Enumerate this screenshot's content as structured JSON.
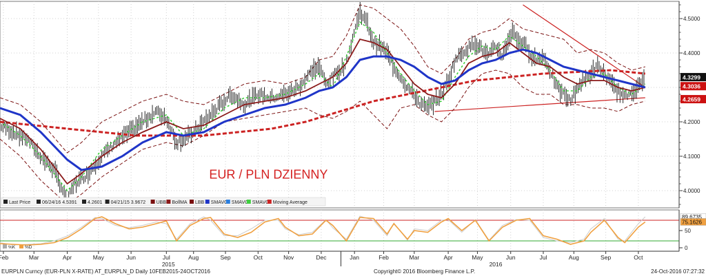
{
  "chart_data": [
    {
      "type": "line",
      "title": "EUR / PLN DZIENNY",
      "ylim": [
        3.95,
        4.55
      ],
      "yticks": [
        4.0,
        4.1,
        4.2,
        4.3,
        4.4,
        4.5
      ],
      "ytick_labels": [
        "4.0000",
        "4.1000",
        "4.2000",
        "4.3000",
        "4.4000",
        "4.5000"
      ],
      "xlim": [
        0,
        100
      ],
      "x_months": [
        "Feb",
        "Mar",
        "Apr",
        "May",
        "Jun",
        "Jul",
        "Aug",
        "Sep",
        "Oct",
        "Nov",
        "Dec",
        "Jan",
        "Feb",
        "Mar",
        "Apr",
        "May",
        "Jun",
        "Jul",
        "Aug",
        "Sep",
        "Oct"
      ],
      "x_month_pos": [
        0.5,
        5,
        9.9,
        14.5,
        19.3,
        24.5,
        28.5,
        33.2,
        38,
        42.5,
        47.3,
        52.2,
        56.5,
        61,
        66,
        70.3,
        75.2,
        80,
        84.5,
        89.2,
        94
      ],
      "x_years": [
        "2015",
        "2016"
      ],
      "x_year_pos": [
        24.8,
        73
      ],
      "legend": [
        {
          "label": "Last Price",
          "color": "#222222"
        },
        {
          "label": "06/24/16 4.5391",
          "color": "#222222"
        },
        {
          "label": "4.2601",
          "color": "#222222"
        },
        {
          "label": "04/21/15 3.9672",
          "color": "#222222"
        },
        {
          "label": "UBB",
          "color": "#7a1010"
        },
        {
          "label": "BollMA",
          "color": "#8b1a1a"
        },
        {
          "label": "LBB",
          "color": "#7a1010"
        },
        {
          "label": "SMAVG",
          "color": "#1f35c8"
        },
        {
          "label": "SMAVG",
          "color": "#2b7fe0"
        },
        {
          "label": "SMAVG",
          "color": "#3ecf3e"
        },
        {
          "label": "Moving Average",
          "color": "#cc2222"
        }
      ],
      "price_labels": [
        {
          "text": "4.3299",
          "value": 4.3299,
          "bg": "#111111",
          "color": "#ffffff"
        },
        {
          "text": "4.3036",
          "value": 4.3036,
          "bg": "#cc1111",
          "color": "#ffffff"
        },
        {
          "text": "4.2659",
          "value": 4.2659,
          "bg": "#cc1111",
          "color": "#ffffff"
        }
      ],
      "series": [
        {
          "name": "Last Price",
          "color": "#111111",
          "x": [
            0,
            2,
            4,
            6,
            8,
            9.9,
            11,
            13,
            15,
            17,
            19,
            21,
            23,
            24.5,
            26,
            28,
            30,
            32,
            34,
            36,
            38,
            40,
            42,
            44,
            46,
            47,
            48,
            50,
            51,
            52,
            53,
            54,
            55,
            56,
            57,
            58,
            59,
            60,
            61,
            62,
            63,
            64,
            65,
            66,
            67,
            68,
            70,
            72,
            73,
            74,
            75.5,
            76,
            77,
            78,
            79,
            80,
            81,
            82,
            83,
            84,
            85,
            86,
            87,
            88,
            89,
            90,
            91,
            92,
            93,
            94,
            95
          ],
          "values": [
            4.19,
            4.17,
            4.15,
            4.1,
            4.06,
            3.97,
            4.02,
            4.05,
            4.1,
            4.14,
            4.17,
            4.2,
            4.23,
            4.21,
            4.14,
            4.16,
            4.2,
            4.24,
            4.28,
            4.25,
            4.28,
            4.27,
            4.28,
            4.3,
            4.35,
            4.36,
            4.31,
            4.35,
            4.37,
            4.45,
            4.52,
            4.49,
            4.43,
            4.42,
            4.4,
            4.36,
            4.33,
            4.3,
            4.28,
            4.25,
            4.24,
            4.26,
            4.28,
            4.32,
            4.38,
            4.4,
            4.43,
            4.39,
            4.42,
            4.39,
            4.47,
            4.44,
            4.43,
            4.4,
            4.38,
            4.39,
            4.35,
            4.3,
            4.28,
            4.26,
            4.3,
            4.32,
            4.34,
            4.36,
            4.34,
            4.31,
            4.29,
            4.27,
            4.29,
            4.3,
            4.33
          ]
        },
        {
          "name": "UBB",
          "color": "#7a1010",
          "x": [
            0,
            3,
            6,
            9.9,
            12,
            15,
            18,
            21,
            24.5,
            27,
            30,
            33,
            36,
            39,
            42,
            45,
            47,
            49,
            51,
            53,
            55,
            57,
            59,
            61,
            63,
            65,
            67,
            69,
            71,
            73,
            75,
            77,
            79,
            81,
            83,
            85,
            87,
            89,
            91,
            93,
            95
          ],
          "values": [
            4.27,
            4.25,
            4.2,
            4.11,
            4.14,
            4.2,
            4.23,
            4.26,
            4.28,
            4.26,
            4.25,
            4.28,
            4.31,
            4.32,
            4.31,
            4.33,
            4.38,
            4.39,
            4.45,
            4.54,
            4.53,
            4.5,
            4.47,
            4.42,
            4.36,
            4.34,
            4.38,
            4.44,
            4.46,
            4.47,
            4.5,
            4.47,
            4.46,
            4.45,
            4.44,
            4.4,
            4.41,
            4.4,
            4.37,
            4.35,
            4.36
          ]
        },
        {
          "name": "LBB",
          "color": "#7a1010",
          "x": [
            0,
            3,
            6,
            9.9,
            12,
            15,
            18,
            21,
            24.5,
            27,
            30,
            33,
            36,
            39,
            42,
            45,
            47,
            49,
            51,
            53,
            55,
            57,
            59,
            61,
            63,
            65,
            67,
            69,
            71,
            73,
            75,
            77,
            79,
            81,
            83,
            85,
            87,
            89,
            91,
            93,
            95
          ],
          "values": [
            4.15,
            4.1,
            4.03,
            3.96,
            3.99,
            4.04,
            4.08,
            4.12,
            4.14,
            4.13,
            4.16,
            4.2,
            4.21,
            4.22,
            4.23,
            4.24,
            4.22,
            4.21,
            4.23,
            4.26,
            4.22,
            4.18,
            4.24,
            4.25,
            4.22,
            4.2,
            4.24,
            4.3,
            4.34,
            4.35,
            4.34,
            4.3,
            4.28,
            4.28,
            4.25,
            4.25,
            4.24,
            4.24,
            4.23,
            4.25,
            4.26
          ]
        },
        {
          "name": "BollMA",
          "color": "#8b1a1a",
          "x": [
            0,
            3,
            6,
            9.9,
            12,
            15,
            18,
            21,
            24.5,
            27,
            30,
            33,
            36,
            39,
            42,
            45,
            47,
            49,
            51,
            53,
            55,
            57,
            59,
            61,
            63,
            65,
            67,
            69,
            71,
            73,
            75,
            77,
            79,
            81,
            83,
            85,
            87,
            89,
            91,
            93,
            95
          ],
          "values": [
            4.21,
            4.18,
            4.12,
            4.02,
            4.05,
            4.1,
            4.14,
            4.17,
            4.2,
            4.18,
            4.19,
            4.22,
            4.25,
            4.26,
            4.27,
            4.29,
            4.31,
            4.33,
            4.37,
            4.44,
            4.43,
            4.41,
            4.36,
            4.31,
            4.28,
            4.27,
            4.31,
            4.37,
            4.39,
            4.4,
            4.43,
            4.4,
            4.37,
            4.36,
            4.33,
            4.31,
            4.32,
            4.32,
            4.3,
            4.29,
            4.3
          ]
        },
        {
          "name": "SMAVG (green)",
          "color": "#3ecf3e",
          "x": [
            0,
            3,
            6,
            9.9,
            12,
            15,
            18,
            21,
            24.5,
            27,
            30,
            33,
            36,
            39,
            42,
            45,
            47,
            49,
            51,
            53,
            55,
            57,
            59,
            61,
            63,
            65,
            67,
            69,
            71,
            73,
            75,
            77,
            79,
            81,
            83,
            85,
            87,
            89,
            91,
            93,
            95
          ],
          "values": [
            4.2,
            4.16,
            4.1,
            4.0,
            4.04,
            4.12,
            4.16,
            4.2,
            4.22,
            4.16,
            4.18,
            4.24,
            4.27,
            4.27,
            4.28,
            4.31,
            4.34,
            4.3,
            4.39,
            4.49,
            4.46,
            4.4,
            4.34,
            4.29,
            4.25,
            4.26,
            4.33,
            4.39,
            4.42,
            4.41,
            4.45,
            4.42,
            4.39,
            4.35,
            4.29,
            4.29,
            4.33,
            4.34,
            4.3,
            4.28,
            4.31
          ]
        },
        {
          "name": "SMAVG (blue)",
          "color": "#1f35c8",
          "x": [
            0,
            3,
            6,
            9.9,
            12,
            15,
            18,
            21,
            24.5,
            27,
            30,
            33,
            36,
            39,
            42,
            45,
            47,
            49,
            51,
            53,
            55,
            57,
            59,
            61,
            63,
            65,
            67,
            69,
            71,
            73,
            75,
            77,
            79,
            81,
            83,
            85,
            87,
            89,
            91,
            93,
            95
          ],
          "values": [
            4.24,
            4.22,
            4.17,
            4.09,
            4.06,
            4.07,
            4.1,
            4.14,
            4.17,
            4.16,
            4.17,
            4.2,
            4.22,
            4.24,
            4.25,
            4.27,
            4.29,
            4.3,
            4.33,
            4.38,
            4.39,
            4.39,
            4.38,
            4.36,
            4.33,
            4.31,
            4.32,
            4.35,
            4.37,
            4.38,
            4.4,
            4.41,
            4.4,
            4.38,
            4.36,
            4.35,
            4.34,
            4.33,
            4.32,
            4.31,
            4.3
          ]
        },
        {
          "name": "Moving Average",
          "color": "#cc2222",
          "x": [
            0,
            5,
            9.9,
            15,
            20,
            24.5,
            30,
            35,
            40,
            45,
            50,
            55,
            60,
            65,
            70,
            75,
            80,
            85,
            90,
            95
          ],
          "values": [
            4.2,
            4.19,
            4.18,
            4.17,
            4.16,
            4.16,
            4.16,
            4.17,
            4.18,
            4.2,
            4.23,
            4.26,
            4.28,
            4.3,
            4.32,
            4.33,
            4.34,
            4.345,
            4.35,
            4.34
          ]
        },
        {
          "name": "Trendline (resistance)",
          "color": "#cc2222",
          "x": [
            77,
            95
          ],
          "values": [
            4.54,
            4.3
          ]
        },
        {
          "name": "Trendline (support)",
          "color": "#cc2222",
          "x": [
            64,
            95
          ],
          "values": [
            4.23,
            4.27
          ]
        }
      ]
    },
    {
      "type": "line",
      "title": "",
      "ylim": [
        -10,
        110
      ],
      "yticks": [
        0,
        50
      ],
      "ytick_labels": [
        "0",
        "50"
      ],
      "reference_lines": [
        {
          "value": 80,
          "color": "#cc2222"
        },
        {
          "value": 20,
          "color": "#2fa82f"
        }
      ],
      "legend": [
        {
          "label": "%K",
          "color": "#aaaaaa"
        },
        {
          "label": "%D",
          "color": "#f0a040"
        }
      ],
      "value_labels": [
        {
          "text": "89.6735",
          "value": 89.6735,
          "bg": "#ffffff",
          "color": "#111111"
        },
        {
          "text": "75.1626",
          "value": 75.1626,
          "bg": "#f0a040",
          "color": "#111111"
        }
      ],
      "series": [
        {
          "name": "%D",
          "color": "#f0a040",
          "x": [
            0,
            2,
            4,
            6,
            8,
            10,
            12,
            14,
            15,
            17,
            19,
            21,
            23,
            24.5,
            26,
            28,
            30,
            31,
            33,
            35,
            37,
            39,
            41,
            42,
            44,
            46,
            48,
            49,
            51,
            53,
            55,
            57,
            58,
            60,
            61,
            63,
            65,
            66,
            68,
            70,
            72,
            74,
            76,
            78,
            80,
            82,
            84,
            86,
            87,
            89,
            91,
            92,
            94,
            95
          ],
          "values": [
            12,
            10,
            8,
            10,
            15,
            30,
            55,
            85,
            90,
            70,
            55,
            60,
            70,
            78,
            20,
            65,
            85,
            88,
            40,
            30,
            45,
            75,
            85,
            60,
            35,
            40,
            80,
            65,
            20,
            88,
            85,
            40,
            70,
            25,
            50,
            45,
            75,
            85,
            50,
            80,
            20,
            60,
            80,
            85,
            35,
            25,
            10,
            20,
            45,
            80,
            30,
            15,
            60,
            75
          ]
        },
        {
          "name": "%K",
          "color": "#cccccc",
          "x": [
            0,
            2,
            4,
            6,
            8,
            10,
            12,
            14,
            15,
            17,
            19,
            21,
            23,
            24.5,
            26,
            28,
            30,
            31,
            33,
            35,
            37,
            39,
            41,
            42,
            44,
            46,
            48,
            49,
            51,
            53,
            55,
            57,
            58,
            60,
            61,
            63,
            65,
            66,
            68,
            70,
            72,
            74,
            76,
            78,
            80,
            82,
            84,
            86,
            87,
            89,
            91,
            92,
            94,
            95
          ],
          "values": [
            15,
            8,
            10,
            12,
            20,
            35,
            60,
            88,
            85,
            65,
            58,
            65,
            75,
            70,
            25,
            70,
            90,
            80,
            35,
            35,
            55,
            80,
            80,
            55,
            38,
            45,
            82,
            58,
            25,
            92,
            80,
            35,
            72,
            22,
            55,
            50,
            80,
            82,
            45,
            82,
            22,
            65,
            82,
            80,
            30,
            20,
            15,
            25,
            55,
            85,
            25,
            20,
            70,
            90
          ]
        }
      ]
    }
  ],
  "footer": {
    "left": "EURPLN Curncy (EUR-PLN X-RATE) AT_EURPLN_D  Daily 10FEB2015-24OCT2016",
    "center": "Copyright© 2016 Bloomberg Finance L.P.",
    "right": "24-Oct-2016 07:27:32"
  }
}
